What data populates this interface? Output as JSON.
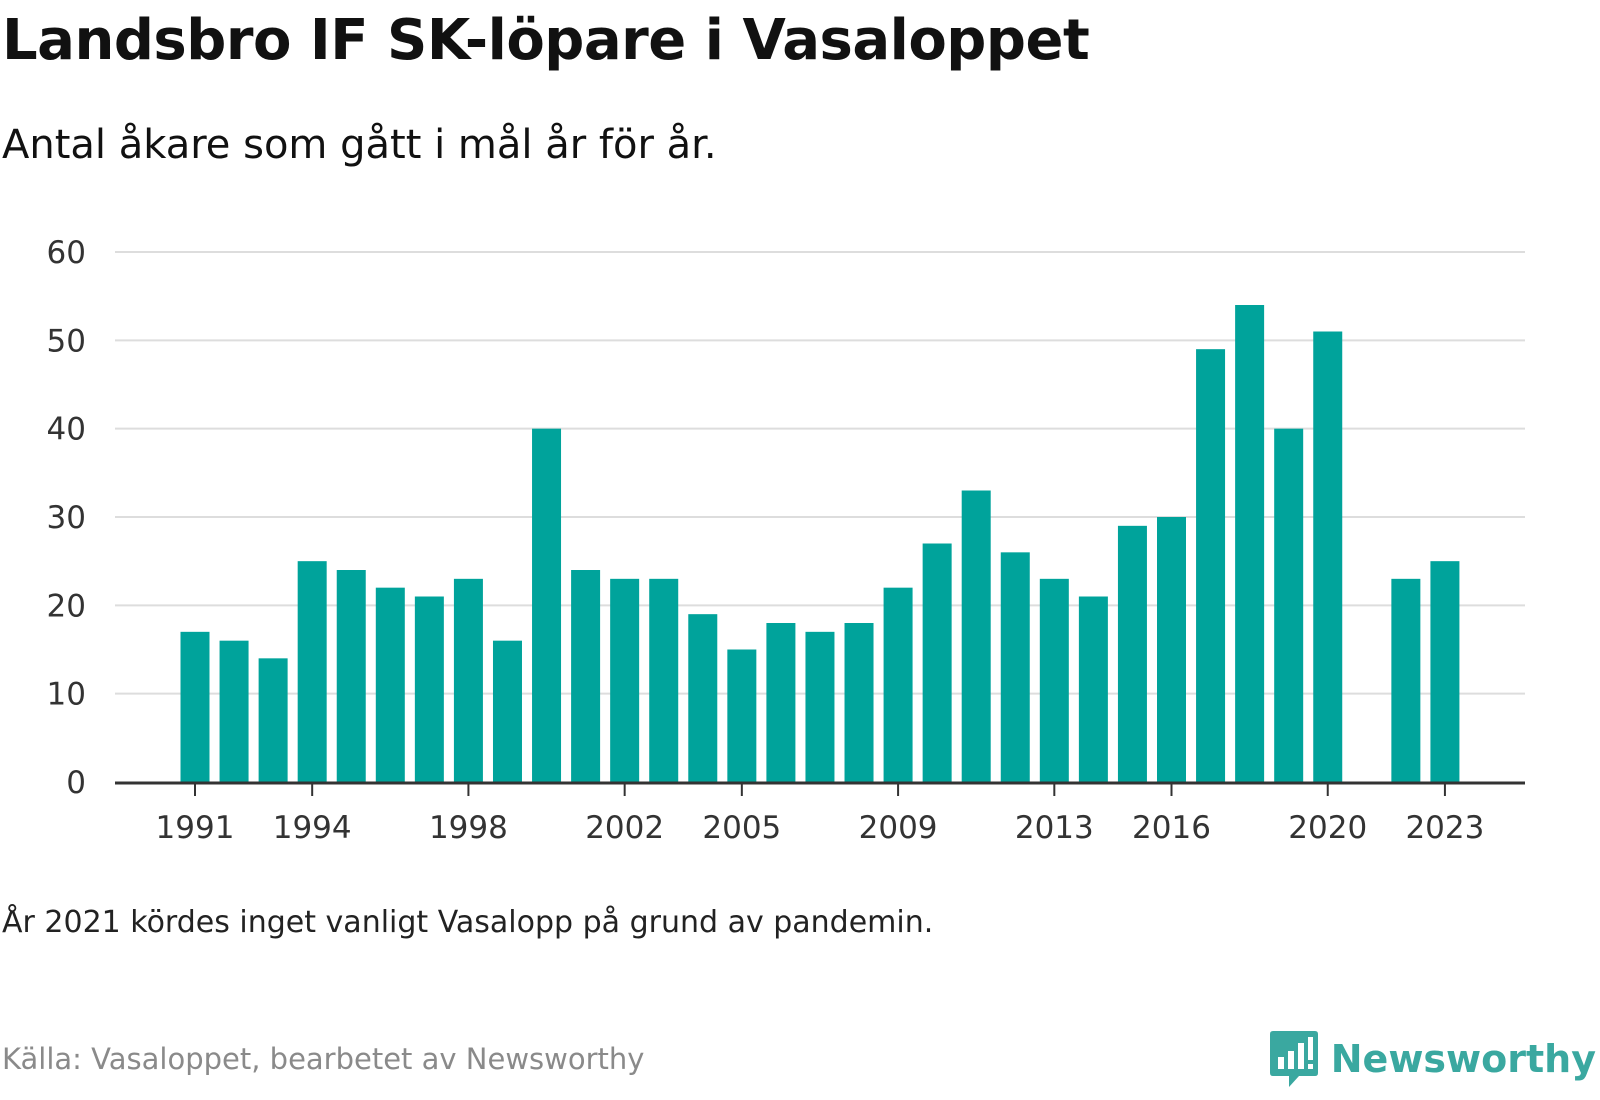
{
  "title": "Landsbro IF SK-löpare i Vasaloppet",
  "subtitle": "Antal åkare som gått i mål år för år.",
  "note": "År 2021 kördes inget vanligt Vasalopp på grund av pandemin.",
  "source": "Källa: Vasaloppet, bearbetet av Newsworthy",
  "logo": {
    "name": "Newsworthy",
    "icon": "newsworthy-logo-icon"
  },
  "colors": {
    "bar": "#00a39b",
    "grid": "#dddddd",
    "axis": "#333333",
    "brand": "#3aa8a0"
  },
  "chart_data": {
    "type": "bar",
    "x": [
      1991,
      1992,
      1993,
      1994,
      1995,
      1996,
      1997,
      1998,
      1999,
      2000,
      2001,
      2002,
      2003,
      2004,
      2005,
      2006,
      2007,
      2008,
      2009,
      2010,
      2011,
      2012,
      2013,
      2014,
      2015,
      2016,
      2017,
      2018,
      2019,
      2020,
      2021,
      2022,
      2023
    ],
    "values": [
      17,
      16,
      14,
      25,
      24,
      22,
      21,
      23,
      16,
      40,
      24,
      23,
      23,
      19,
      15,
      18,
      17,
      18,
      22,
      27,
      33,
      26,
      23,
      21,
      29,
      30,
      49,
      54,
      40,
      51,
      null,
      23,
      25
    ],
    "x_ticks": [
      "1991",
      "1994",
      "1998",
      "2002",
      "2005",
      "2009",
      "2013",
      "2016",
      "2020",
      "2023"
    ],
    "y_ticks": [
      "0",
      "10",
      "20",
      "30",
      "40",
      "50",
      "60"
    ],
    "ylim": [
      0,
      60
    ],
    "grid": true
  }
}
